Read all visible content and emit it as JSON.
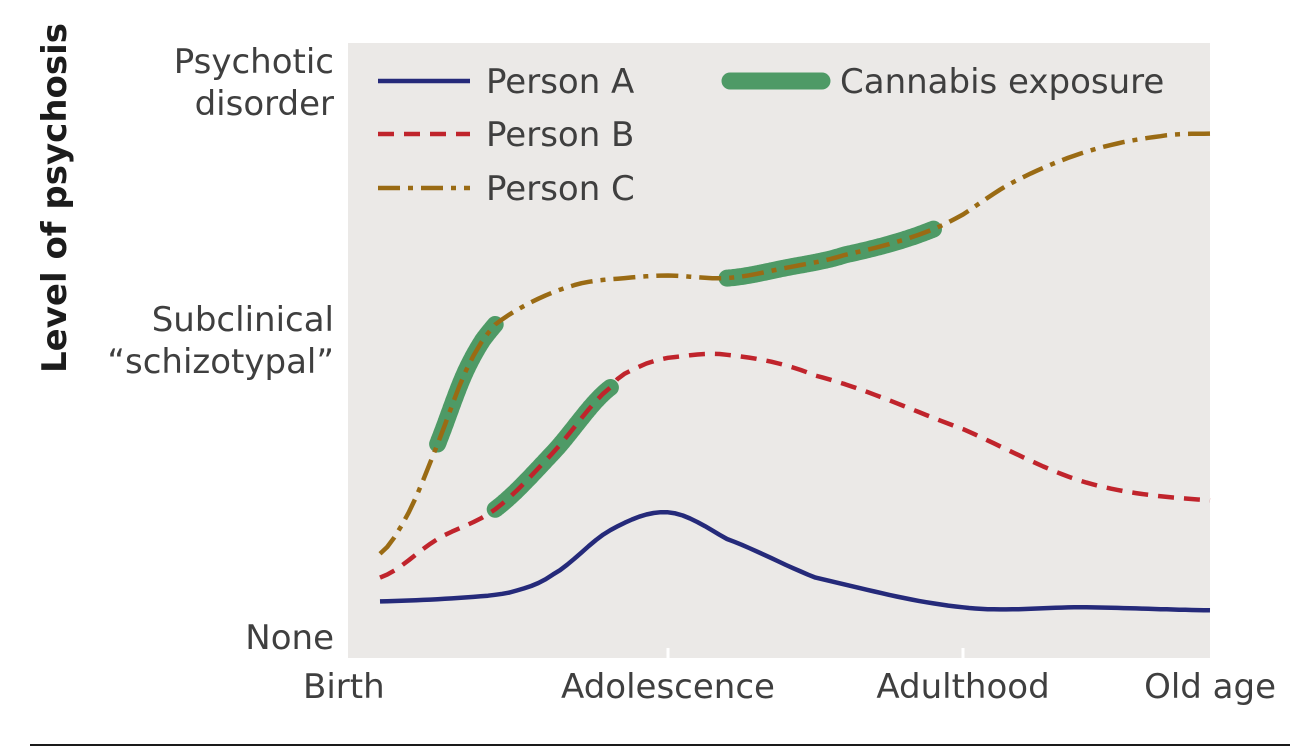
{
  "chart_data": {
    "type": "line",
    "title": "",
    "xlabel": "",
    "ylabel": "Level of psychosis",
    "xlim": [
      0,
      3
    ],
    "ylim": [
      0,
      2
    ],
    "x_ticks": [
      {
        "value": 0,
        "label": "Birth"
      },
      {
        "value": 1,
        "label": "Adolescence"
      },
      {
        "value": 2,
        "label": "Adulthood"
      },
      {
        "value": 3,
        "label": "Old age"
      }
    ],
    "y_ticks": [
      {
        "value": 0,
        "lines": [
          "None"
        ]
      },
      {
        "value": 1,
        "lines": [
          "Subclinical",
          "“schizotypal”"
        ]
      },
      {
        "value": 2,
        "lines": [
          "Psychotic",
          "disorder"
        ]
      }
    ],
    "grid": false,
    "legend": {
      "placement": "top-left",
      "entries": [
        {
          "key": "A",
          "label": "Person A"
        },
        {
          "key": "B",
          "label": "Person B"
        },
        {
          "key": "C",
          "label": "Person C"
        },
        {
          "key": "exposure",
          "label": "Cannabis exposure"
        }
      ]
    },
    "series": [
      {
        "name": "Person A",
        "style": "solid",
        "color": "#252a7a",
        "x": [
          0,
          0.25,
          0.45,
          0.6,
          0.8,
          1.0,
          1.2,
          1.5,
          2.0,
          2.5,
          3.0
        ],
        "y": [
          0.12,
          0.13,
          0.15,
          0.21,
          0.36,
          0.42,
          0.33,
          0.2,
          0.1,
          0.1,
          0.09
        ]
      },
      {
        "name": "Person B",
        "style": "dashed",
        "color": "#c0242c",
        "x": [
          0,
          0.2,
          0.4,
          0.6,
          0.8,
          0.9,
          1.0,
          1.2,
          1.5,
          2.0,
          2.5,
          3.0
        ],
        "y": [
          0.2,
          0.33,
          0.43,
          0.62,
          0.84,
          0.91,
          0.94,
          0.95,
          0.88,
          0.7,
          0.52,
          0.46
        ],
        "exposure": [
          0.4,
          0.8
        ]
      },
      {
        "name": "Person C",
        "style": "dashdot",
        "color": "#9a6b14",
        "x": [
          0,
          0.1,
          0.2,
          0.3,
          0.4,
          0.55,
          0.7,
          0.85,
          1.0,
          1.2,
          1.4,
          1.6,
          1.9,
          2.2,
          2.5,
          2.8,
          3.0
        ],
        "y": [
          0.28,
          0.42,
          0.65,
          0.9,
          1.06,
          1.16,
          1.22,
          1.24,
          1.25,
          1.24,
          1.28,
          1.33,
          1.43,
          1.61,
          1.73,
          1.79,
          1.8
        ],
        "exposure": [
          [
            0.2,
            0.4
          ],
          [
            1.2,
            1.9
          ]
        ]
      }
    ],
    "exposure_color": "#4e9a66"
  }
}
